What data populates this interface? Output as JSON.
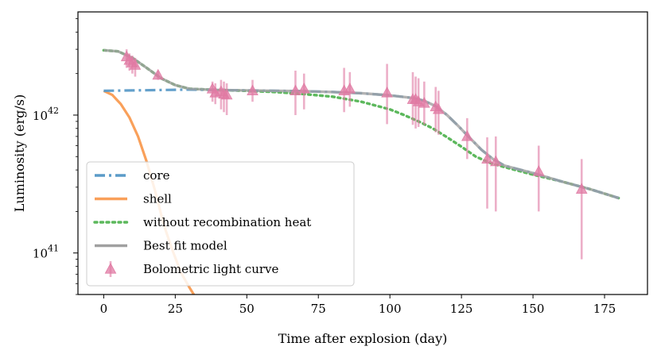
{
  "chart_data": {
    "type": "line",
    "title": "",
    "xlabel": "Time after explosion (day)",
    "ylabel": "Luminosity (erg/s)",
    "xlim": [
      -9,
      190
    ],
    "ylim": [
      5e+40,
      5.6e+42
    ],
    "yscale": "log",
    "grid": false,
    "legend_position": "lower-left",
    "x_ticks": [
      {
        "value": 0,
        "label": "0"
      },
      {
        "value": 25,
        "label": "25"
      },
      {
        "value": 50,
        "label": "50"
      },
      {
        "value": 75,
        "label": "75"
      },
      {
        "value": 100,
        "label": "100"
      },
      {
        "value": 125,
        "label": "125"
      },
      {
        "value": 150,
        "label": "150"
      },
      {
        "value": 175,
        "label": "175"
      }
    ],
    "y_ticks": [
      {
        "value": 1e+41,
        "base": "10",
        "exp": "41"
      },
      {
        "value": 1e+42,
        "base": "10",
        "exp": "42"
      }
    ],
    "series": [
      {
        "name": "core",
        "style": "dashdot",
        "color": "#5b9bc8",
        "x": [
          0,
          10,
          20,
          30,
          40,
          50,
          60,
          70,
          80,
          90,
          100,
          108,
          112,
          116,
          120,
          124,
          128,
          132,
          136,
          140,
          150,
          160,
          170,
          180
        ],
        "y": [
          1.5e+42,
          1.51e+42,
          1.52e+42,
          1.53e+42,
          1.52e+42,
          1.51e+42,
          1.5e+42,
          1.49e+42,
          1.47e+42,
          1.44e+42,
          1.39e+42,
          1.33e+42,
          1.27e+42,
          1.16e+42,
          1e+42,
          8.3e+41,
          6.8e+41,
          5.6e+41,
          4.8e+41,
          4.3e+41,
          3.8e+41,
          3.3e+41,
          2.9e+41,
          2.5e+41
        ]
      },
      {
        "name": "shell",
        "style": "solid",
        "color": "#f9a05a",
        "x": [
          0,
          3,
          6,
          9,
          12,
          15,
          18,
          21,
          24,
          27,
          30,
          32
        ],
        "y": [
          1.5e+42,
          1.4e+42,
          1.2e+42,
          9.6e+41,
          7e+41,
          4.6e+41,
          2.8e+41,
          1.6e+41,
          1.05e+41,
          7.2e+40,
          5.6e+40,
          4.8e+40
        ]
      },
      {
        "name": "without recombination heat",
        "style": "dotted",
        "color": "#5cb85c",
        "x": [
          0,
          5,
          10,
          15,
          20,
          25,
          30,
          40,
          50,
          60,
          70,
          80,
          90,
          100,
          105,
          110,
          115,
          120,
          125,
          130,
          135,
          140,
          150,
          160,
          170,
          180
        ],
        "y": [
          2.95e+42,
          2.9e+42,
          2.6e+42,
          2.2e+42,
          1.85e+42,
          1.65e+42,
          1.55e+42,
          1.52e+42,
          1.5e+42,
          1.47e+42,
          1.42e+42,
          1.36e+42,
          1.25e+42,
          1.1e+42,
          1e+42,
          9e+41,
          8e+41,
          6.9e+41,
          5.9e+41,
          5e+41,
          4.5e+41,
          4.2e+41,
          3.7e+41,
          3.3e+41,
          2.9e+41,
          2.5e+41
        ]
      },
      {
        "name": "Best fit model",
        "style": "solid",
        "color": "#a0a0a0",
        "x": [
          0,
          5,
          10,
          15,
          20,
          25,
          30,
          40,
          50,
          60,
          70,
          80,
          90,
          100,
          108,
          112,
          116,
          120,
          124,
          128,
          132,
          136,
          140,
          150,
          160,
          170,
          180
        ],
        "y": [
          2.95e+42,
          2.9e+42,
          2.6e+42,
          2.2e+42,
          1.85e+42,
          1.65e+42,
          1.55e+42,
          1.52e+42,
          1.51e+42,
          1.5e+42,
          1.49e+42,
          1.47e+42,
          1.44e+42,
          1.39e+42,
          1.33e+42,
          1.27e+42,
          1.16e+42,
          1e+42,
          8.3e+41,
          6.8e+41,
          5.6e+41,
          4.8e+41,
          4.3e+41,
          3.8e+41,
          3.3e+41,
          2.9e+41,
          2.5e+41
        ]
      }
    ],
    "points": {
      "name": "Bolometric light curve",
      "marker": "triangle",
      "color": "#e07aa3",
      "data": [
        {
          "x": 8,
          "y": 2.65e+42,
          "lo": 2.2e+42,
          "hi": 3e+42
        },
        {
          "x": 9,
          "y": 2.5e+42,
          "lo": 2.1e+42,
          "hi": 2.8e+42
        },
        {
          "x": 10,
          "y": 2.4e+42,
          "lo": 2e+42,
          "hi": 2.7e+42
        },
        {
          "x": 11,
          "y": 2.3e+42,
          "lo": 1.9e+42,
          "hi": 2.6e+42
        },
        {
          "x": 19,
          "y": 1.95e+42,
          "lo": 1.8e+42,
          "hi": 2.1e+42
        },
        {
          "x": 38,
          "y": 1.55e+42,
          "lo": 1.25e+42,
          "hi": 1.75e+42
        },
        {
          "x": 39,
          "y": 1.45e+42,
          "lo": 1.2e+42,
          "hi": 1.7e+42
        },
        {
          "x": 41,
          "y": 1.48e+42,
          "lo": 1.1e+42,
          "hi": 1.8e+42
        },
        {
          "x": 42,
          "y": 1.42e+42,
          "lo": 1.05e+42,
          "hi": 1.75e+42
        },
        {
          "x": 43,
          "y": 1.4e+42,
          "lo": 1e+42,
          "hi": 1.7e+42
        },
        {
          "x": 52,
          "y": 1.5e+42,
          "lo": 1.25e+42,
          "hi": 1.8e+42
        },
        {
          "x": 67,
          "y": 1.5e+42,
          "lo": 1e+42,
          "hi": 2.1e+42
        },
        {
          "x": 70,
          "y": 1.55e+42,
          "lo": 1.1e+42,
          "hi": 2e+42
        },
        {
          "x": 84,
          "y": 1.5e+42,
          "lo": 1.05e+42,
          "hi": 2.2e+42
        },
        {
          "x": 86,
          "y": 1.55e+42,
          "lo": 1.15e+42,
          "hi": 2.05e+42
        },
        {
          "x": 99,
          "y": 1.45e+42,
          "lo": 8.6e+41,
          "hi": 2.35e+42
        },
        {
          "x": 108,
          "y": 1.3e+42,
          "lo": 8.5e+41,
          "hi": 2.05e+42
        },
        {
          "x": 109,
          "y": 1.3e+42,
          "lo": 8e+41,
          "hi": 1.9e+42
        },
        {
          "x": 110,
          "y": 1.25e+42,
          "lo": 8.2e+41,
          "hi": 1.85e+42
        },
        {
          "x": 112,
          "y": 1.22e+42,
          "lo": 8.5e+41,
          "hi": 1.75e+42
        },
        {
          "x": 116,
          "y": 1.15e+42,
          "lo": 7.5e+41,
          "hi": 1.6e+42
        },
        {
          "x": 117,
          "y": 1.1e+42,
          "lo": 7.2e+41,
          "hi": 1.5e+42
        },
        {
          "x": 127,
          "y": 7e+41,
          "lo": 4.8e+41,
          "hi": 9.5e+41
        },
        {
          "x": 134,
          "y": 4.8e+41,
          "lo": 2.1e+41,
          "hi": 6.9e+41
        },
        {
          "x": 137,
          "y": 4.6e+41,
          "lo": 2e+41,
          "hi": 7e+41
        },
        {
          "x": 152,
          "y": 3.9e+41,
          "lo": 2e+41,
          "hi": 6e+41
        },
        {
          "x": 167,
          "y": 2.9e+41,
          "lo": 9e+40,
          "hi": 4.8e+41
        }
      ]
    },
    "legend": [
      {
        "label": "core",
        "kind": "dashdot",
        "color": "#5b9bc8"
      },
      {
        "label": "shell",
        "kind": "solid",
        "color": "#f9a05a"
      },
      {
        "label": "without recombination heat",
        "kind": "dotted",
        "color": "#5cb85c"
      },
      {
        "label": "Best fit model",
        "kind": "solid",
        "color": "#a0a0a0"
      },
      {
        "label": "Bolometric light curve",
        "kind": "triangle",
        "color": "#e07aa3"
      }
    ]
  }
}
